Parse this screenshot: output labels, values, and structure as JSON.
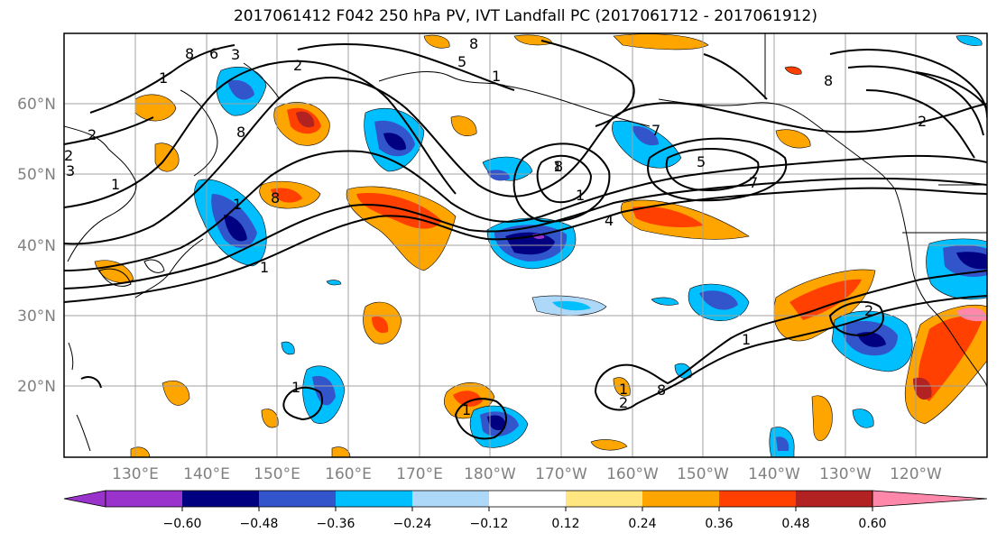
{
  "title": "2017061412 F042 250 hPa PV, IVT Landfall PC (2017061712 - 2017061912)",
  "lat_labels": [
    "20°N",
    "30°N",
    "40°N",
    "50°N",
    "60°N"
  ],
  "lon_labels": [
    "130°E",
    "140°E",
    "150°E",
    "160°E",
    "170°E",
    "180°W",
    "170°W",
    "160°W",
    "150°W",
    "140°W",
    "130°W",
    "120°W"
  ],
  "colorbar": {
    "colors": [
      "#9933cc",
      "#000080",
      "#3355cc",
      "#00bfff",
      "#add8f7",
      "#ffffff",
      "#ffe680",
      "#ffa500",
      "#ff4000",
      "#b22222",
      "#ff88aa"
    ],
    "tick_labels": [
      "−0.60",
      "−0.48",
      "−0.36",
      "−0.24",
      "−0.12",
      "0.12",
      "0.24",
      "0.36",
      "0.48",
      "0.60"
    ]
  },
  "contour_labels": [
    "1",
    "2",
    "8",
    "6",
    "1",
    "2",
    "3",
    "1",
    "8",
    "1",
    "8",
    "5",
    "1",
    "8",
    "2",
    "3",
    "2",
    "8",
    "5",
    "7",
    "1",
    "4",
    "1",
    "1",
    "1",
    "1",
    "2",
    "8",
    "1",
    "2",
    "7",
    "8"
  ]
}
